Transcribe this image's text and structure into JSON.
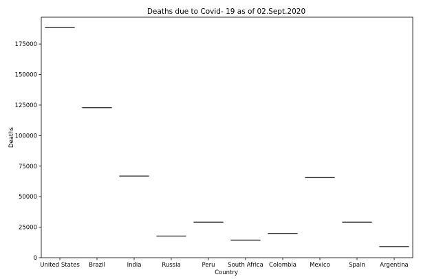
{
  "chart_data": {
    "type": "box",
    "title": "Deaths due to Covid- 19 as of 02.Sept.2020",
    "xlabel": "Country",
    "ylabel": "Deaths",
    "categories": [
      "United States",
      "Brazil",
      "India",
      "Russia",
      "Peru",
      "South Africa",
      "Colombia",
      "Mexico",
      "Spain",
      "Argentina"
    ],
    "values": [
      188700,
      122900,
      66900,
      17700,
      29100,
      14400,
      19900,
      65600,
      29100,
      9100
    ],
    "ylim": [
      0,
      197000
    ],
    "yticks": [
      0,
      25000,
      50000,
      75000,
      100000,
      125000,
      150000,
      175000
    ],
    "ytick_labels": [
      "0",
      "25000",
      "50000",
      "75000",
      "100000",
      "125000",
      "150000",
      "175000"
    ],
    "grid": false,
    "colors": {
      "line": "#333333",
      "axis": "#000000"
    }
  }
}
